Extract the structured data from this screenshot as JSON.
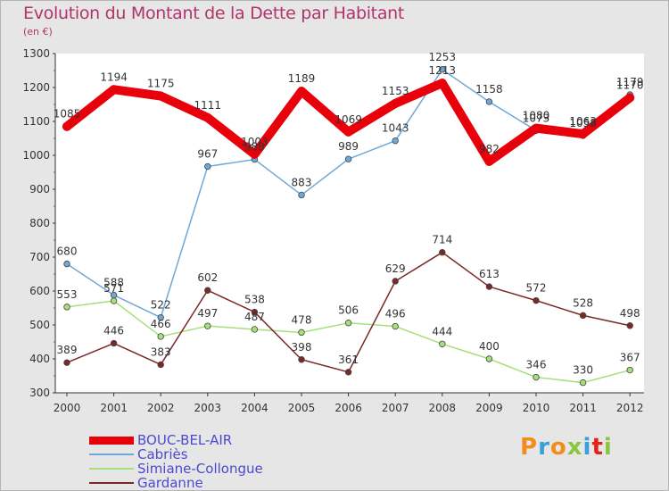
{
  "header": {
    "title": "Evolution du Montant de la Dette par Habitant",
    "subtitle": "(en €)"
  },
  "logo": {
    "text": "Proxiti",
    "colors": [
      "#f28c1b",
      "#3a9fd8",
      "#f28c1b",
      "#8cc63f",
      "#3a9fd8",
      "#e2231a",
      "#8cc63f"
    ]
  },
  "chart_data": {
    "type": "line",
    "x": [
      "2000",
      "2001",
      "2002",
      "2003",
      "2004",
      "2005",
      "2006",
      "2007",
      "2008",
      "2009",
      "2010",
      "2011",
      "2012"
    ],
    "ylim": [
      300,
      1300
    ],
    "yticks": [
      "300",
      "400",
      "500",
      "600",
      "700",
      "800",
      "900",
      "1000",
      "1100",
      "1200",
      "1300"
    ],
    "grid": false,
    "legend_position": "bottom-left",
    "series": [
      {
        "name": "BOUC-BEL-AIR",
        "color": "#e8000b",
        "values": [
          1085,
          1194,
          1175,
          1111,
          1003,
          1189,
          1069,
          1153,
          1213,
          982,
          1080,
          1063,
          1170
        ],
        "labels": [
          "1085",
          "1194",
          "1175",
          "1111",
          "1003",
          "1189",
          "1069",
          "1153",
          "1213",
          "982",
          "1080",
          "1063",
          "1170"
        ]
      },
      {
        "name": "Cabriès",
        "color": "#6fa7d6",
        "values": [
          680,
          588,
          522,
          967,
          988,
          883,
          989,
          1043,
          1253,
          1158,
          1073,
          1058,
          1179
        ],
        "labels": [
          "680",
          "588",
          "522",
          "967",
          "988",
          "883",
          "989",
          "1043",
          "1253",
          "1158",
          "1073",
          "1058",
          "1179"
        ]
      },
      {
        "name": "Simiane-Collongue",
        "color": "#a6e07a",
        "values": [
          553,
          571,
          466,
          497,
          487,
          478,
          506,
          496,
          444,
          400,
          346,
          330,
          367
        ],
        "labels": [
          "553",
          "571",
          "466",
          "497",
          "487",
          "478",
          "506",
          "496",
          "444",
          "400",
          "346",
          "330",
          "367"
        ]
      },
      {
        "name": "Gardanne",
        "color": "#7a2828",
        "values": [
          389,
          446,
          383,
          602,
          538,
          398,
          361,
          629,
          714,
          613,
          572,
          528,
          498
        ],
        "labels": [
          "389",
          "446",
          "383",
          "602",
          "538",
          "398",
          "361",
          "629",
          "714",
          "613",
          "572",
          "528",
          "498"
        ]
      }
    ]
  }
}
